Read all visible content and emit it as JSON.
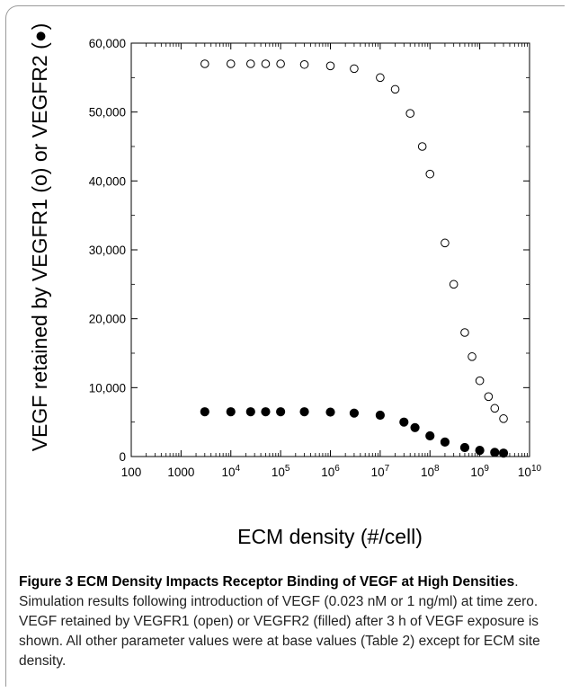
{
  "chart_data": {
    "type": "scatter",
    "xscale": "log",
    "xlim": [
      100,
      10000000000
    ],
    "ylim": [
      0,
      60000
    ],
    "xlabel": "ECM density (#/cell)",
    "ylabel": "VEGF retained by VEGFR1 (o) or VEGFR2 (●)",
    "xticks": [
      "100",
      "1000",
      "10^4",
      "10^5",
      "10^6",
      "10^7",
      "10^8",
      "10^9",
      "10^10"
    ],
    "yticks": [
      "0",
      "10,000",
      "20,000",
      "30,000",
      "40,000",
      "50,000",
      "60,000"
    ],
    "series": [
      {
        "name": "VEGFR1",
        "marker": "open-circle",
        "points": [
          [
            3000,
            57000
          ],
          [
            10000,
            57000
          ],
          [
            25000,
            57000
          ],
          [
            50000,
            57000
          ],
          [
            100000,
            57000
          ],
          [
            300000,
            56900
          ],
          [
            1000000,
            56700
          ],
          [
            3000000,
            56300
          ],
          [
            10000000,
            55000
          ],
          [
            20000000,
            53300
          ],
          [
            40000000,
            49800
          ],
          [
            70000000,
            45000
          ],
          [
            100000000,
            41000
          ],
          [
            200000000,
            31000
          ],
          [
            300000000,
            25000
          ],
          [
            500000000,
            18000
          ],
          [
            700000000,
            14500
          ],
          [
            1000000000,
            11000
          ],
          [
            1500000000,
            8700
          ],
          [
            2000000000,
            7000
          ],
          [
            3000000000,
            5500
          ]
        ]
      },
      {
        "name": "VEGFR2",
        "marker": "filled-circle",
        "points": [
          [
            3000,
            6500
          ],
          [
            10000,
            6500
          ],
          [
            25000,
            6500
          ],
          [
            50000,
            6500
          ],
          [
            100000,
            6500
          ],
          [
            300000,
            6500
          ],
          [
            1000000,
            6450
          ],
          [
            3000000,
            6300
          ],
          [
            10000000,
            6000
          ],
          [
            30000000,
            5000
          ],
          [
            50000000,
            4200
          ],
          [
            100000000,
            3000
          ],
          [
            200000000,
            2100
          ],
          [
            500000000,
            1300
          ],
          [
            1000000000,
            900
          ],
          [
            2000000000,
            600
          ],
          [
            3000000000,
            500
          ]
        ]
      }
    ]
  },
  "caption": {
    "figure_label": "Figure 3 ECM Density Impacts Receptor Binding of VEGF at High Densities",
    "text": ". Simulation results following introduction of VEGF (0.023 nM or 1 ng/ml) at time zero. VEGF retained by VEGFR1 (open) or VEGFR2 (filled) after 3 h of VEGF exposure is shown. All other parameter values were at base values (Table 2) except for ECM site density."
  }
}
